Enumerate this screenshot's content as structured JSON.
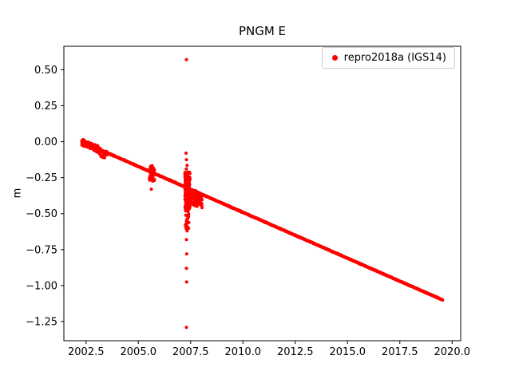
{
  "chart_data": {
    "type": "scatter",
    "title": "PNGM E",
    "xlabel": "",
    "ylabel": "m",
    "xlim": [
      2001.44,
      2020.41
    ],
    "ylim": [
      -1.383,
      0.663
    ],
    "xticks": [
      2002.5,
      2005.0,
      2007.5,
      2010.0,
      2012.5,
      2015.0,
      2017.5,
      2020.0
    ],
    "xtick_labels": [
      "2002.5",
      "2005.0",
      "2007.5",
      "2010.0",
      "2012.5",
      "2015.0",
      "2017.5",
      "2020.0"
    ],
    "yticks": [
      0.5,
      0.25,
      0.0,
      -0.25,
      -0.5,
      -0.75,
      -1.0,
      -1.25
    ],
    "ytick_labels": [
      "0.50",
      "0.25",
      "0.00",
      "−0.25",
      "−0.50",
      "−0.75",
      "−1.00",
      "−1.25"
    ],
    "grid": false,
    "axis_color": "#000000",
    "background": "#ffffff",
    "legend_position": "upper right",
    "series": [
      {
        "name": "repro2018a (IGS14)",
        "color": "#ff0000",
        "marker": "dot",
        "marker_radius": 2,
        "trend": {
          "x_start": 2002.3,
          "y_start": 0.0,
          "x_end": 2019.55,
          "y_end": -1.1,
          "step": 0.012,
          "noise": 0.004
        },
        "clusters": [
          {
            "relative": true,
            "x0": 2002.3,
            "x1": 2003.1,
            "dy0": -0.025,
            "dy1": 0.02,
            "n": 90
          },
          {
            "relative": true,
            "x0": 2003.15,
            "x1": 2003.55,
            "dy0": -0.045,
            "dy1": 0.01,
            "n": 35
          },
          {
            "relative": false,
            "x0": 2005.52,
            "x1": 2005.78,
            "y0": -0.275,
            "y1": -0.165,
            "n": 45
          },
          {
            "relative": false,
            "x0": 2007.22,
            "x1": 2007.47,
            "y0": -0.47,
            "y1": -0.21,
            "n": 160
          },
          {
            "relative": false,
            "x0": 2007.25,
            "x1": 2007.42,
            "y0": -0.62,
            "y1": -0.47,
            "n": 22
          },
          {
            "relative": true,
            "x0": 2007.45,
            "x1": 2008.05,
            "dy0": -0.1,
            "dy1": 0.01,
            "n": 70
          }
        ],
        "outliers": [
          [
            2007.3,
            0.57
          ],
          [
            2007.28,
            -0.08
          ],
          [
            2007.3,
            -0.125
          ],
          [
            2007.33,
            -0.165
          ],
          [
            2007.29,
            -0.19
          ],
          [
            2007.31,
            -0.55
          ],
          [
            2007.3,
            -0.585
          ],
          [
            2007.33,
            -0.62
          ],
          [
            2007.3,
            -0.68
          ],
          [
            2007.31,
            -0.78
          ],
          [
            2007.3,
            -0.88
          ],
          [
            2007.31,
            -0.975
          ],
          [
            2007.3,
            -1.29
          ],
          [
            2005.62,
            -0.33
          ]
        ]
      }
    ]
  }
}
